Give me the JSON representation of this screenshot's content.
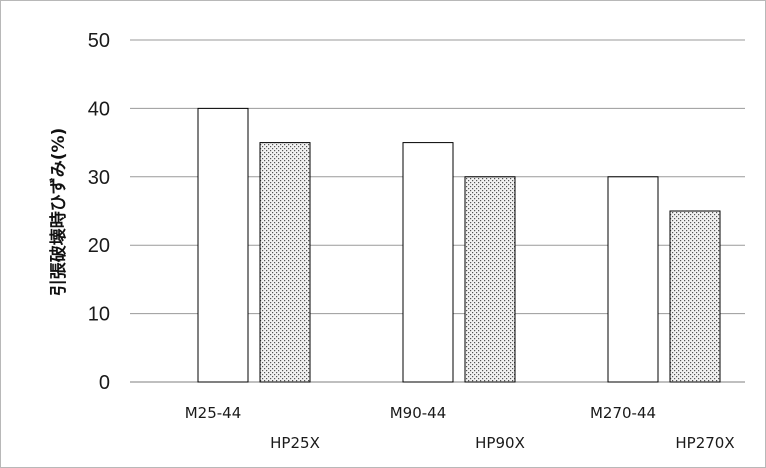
{
  "chart_data": {
    "type": "bar",
    "ylabel": "引張破壊時ひずみ(%)",
    "ylim": [
      0,
      50
    ],
    "yticks": [
      0,
      10,
      20,
      30,
      40,
      50
    ],
    "grid": true,
    "series": [
      {
        "categories": [
          "M25-44",
          "M90-44",
          "M270-44"
        ],
        "values": [
          40,
          35,
          30
        ],
        "style": "white",
        "color": "#ffffff"
      },
      {
        "categories": [
          "HP25X",
          "HP90X",
          "HP270X"
        ],
        "values": [
          35,
          30,
          25
        ],
        "style": "dotted",
        "color": "#d9d9d9"
      }
    ]
  }
}
